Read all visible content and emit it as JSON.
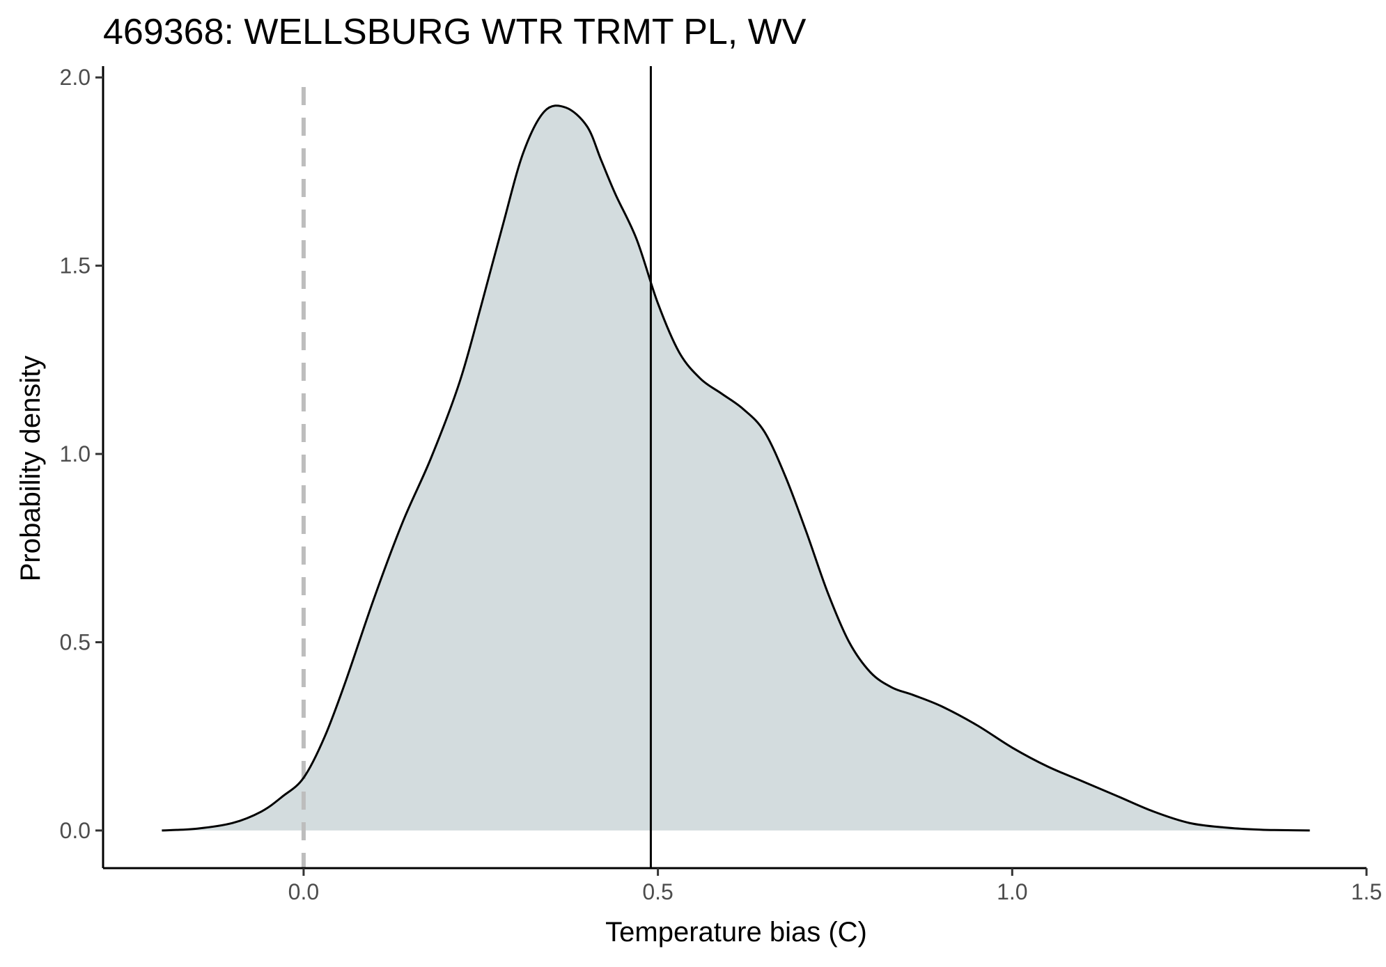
{
  "chart_data": {
    "type": "area",
    "title": "469368: WELLSBURG WTR TRMT PL, WV",
    "xlabel": "Temperature bias (C)",
    "ylabel": "Probability density",
    "xlim": [
      -0.283,
      1.5
    ],
    "ylim": [
      -0.1,
      2.03
    ],
    "x_ticks": [
      0.0,
      0.5,
      1.0,
      1.5
    ],
    "x_tick_labels": [
      "0.0",
      "0.5",
      "1.0",
      "1.5"
    ],
    "y_ticks": [
      0.0,
      0.5,
      1.0,
      1.5,
      2.0
    ],
    "y_tick_labels": [
      "0.0",
      "0.5",
      "1.0",
      "1.5",
      "2.0"
    ],
    "grid": false,
    "legend": "none",
    "series": [
      {
        "x": [
          -0.2,
          -0.15,
          -0.1,
          -0.06,
          -0.03,
          0.0,
          0.03,
          0.06,
          0.1,
          0.14,
          0.18,
          0.22,
          0.25,
          0.28,
          0.31,
          0.34,
          0.37,
          0.4,
          0.42,
          0.44,
          0.47,
          0.5,
          0.53,
          0.56,
          0.59,
          0.62,
          0.65,
          0.68,
          0.71,
          0.74,
          0.77,
          0.8,
          0.83,
          0.86,
          0.9,
          0.95,
          1.0,
          1.05,
          1.1,
          1.15,
          1.2,
          1.25,
          1.3,
          1.35,
          1.38,
          1.42
        ],
        "y": [
          0.0,
          0.005,
          0.02,
          0.05,
          0.09,
          0.14,
          0.25,
          0.4,
          0.62,
          0.82,
          0.99,
          1.19,
          1.39,
          1.6,
          1.8,
          1.91,
          1.92,
          1.87,
          1.78,
          1.69,
          1.57,
          1.4,
          1.27,
          1.2,
          1.16,
          1.12,
          1.06,
          0.94,
          0.79,
          0.63,
          0.5,
          0.42,
          0.38,
          0.36,
          0.33,
          0.28,
          0.22,
          0.17,
          0.13,
          0.09,
          0.05,
          0.02,
          0.008,
          0.002,
          0.001,
          0.0
        ],
        "fill": "#d3dcde",
        "stroke": "#000000"
      }
    ],
    "vlines": [
      {
        "x": 0.0,
        "style": "dashed",
        "color": "#bdbdbd"
      },
      {
        "x": 0.49,
        "style": "solid",
        "color": "#000000"
      }
    ]
  }
}
